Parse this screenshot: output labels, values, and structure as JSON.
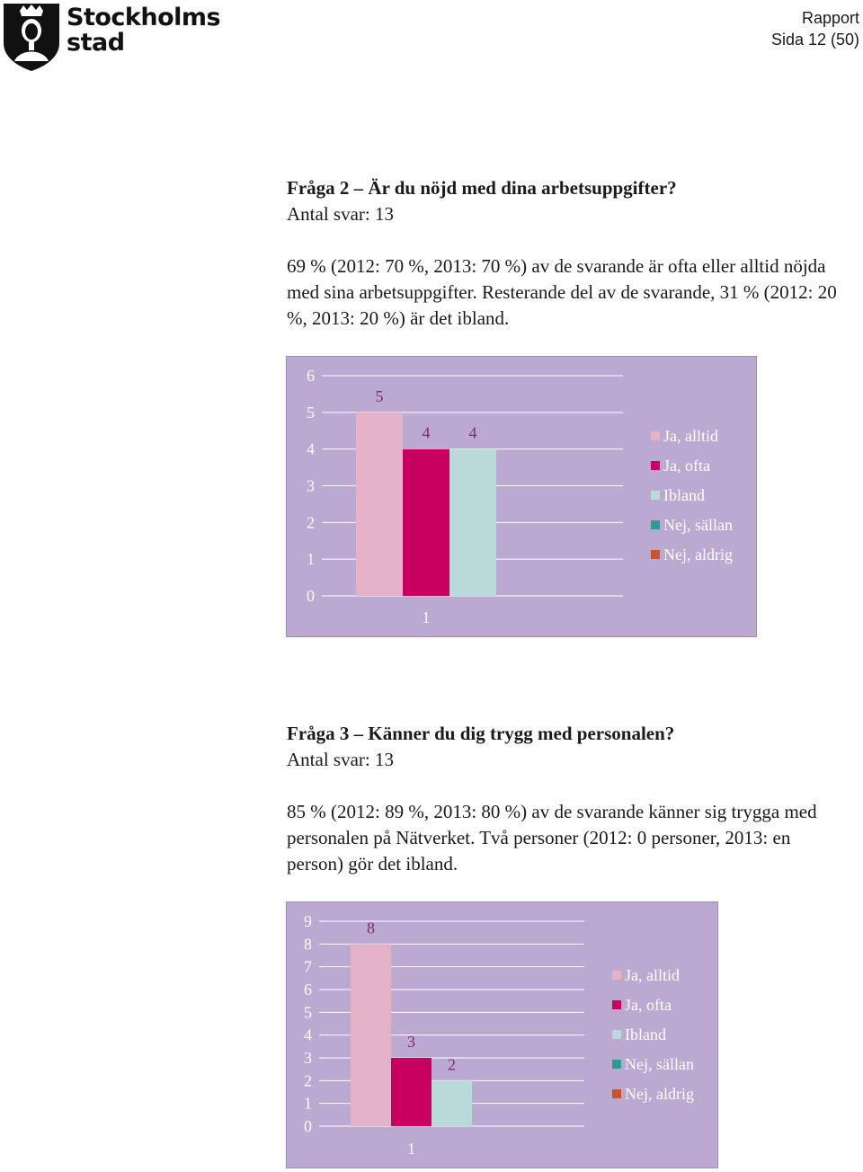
{
  "header": {
    "logo_lines": [
      "Stockholms",
      "stad"
    ],
    "report_label": "Rapport",
    "page_label": "Sida 12 (50)"
  },
  "sections": [
    {
      "title": "Fråga 2 – Är du nöjd med dina arbetsuppgifter?",
      "answers": "Antal svar: 13",
      "body": "69 % (2012: 70 %, 2013: 70 %) av de svarande är ofta eller alltid nöjda med sina arbetsuppgifter. Resterande del av de svarande, 31 % (2012: 20 %, 2013: 20 %) är det ibland."
    },
    {
      "title": "Fråga 3 – Känner du dig trygg med personalen?",
      "answers": "Antal svar: 13",
      "body": "85 % (2012: 89 %, 2013: 80 %) av de svarande känner sig trygga med personalen på Nätverket. Två personer (2012: 0 personer, 2013: en person) gör det ibland."
    }
  ],
  "chart_data": [
    {
      "type": "bar",
      "categories": [
        "1"
      ],
      "series": [
        {
          "name": "Ja, alltid",
          "values": [
            5
          ]
        },
        {
          "name": "Ja, ofta",
          "values": [
            4
          ]
        },
        {
          "name": "Ibland",
          "values": [
            4
          ]
        },
        {
          "name": "Nej, sällan",
          "values": [
            0
          ]
        },
        {
          "name": "Nej, aldrig",
          "values": [
            0
          ]
        }
      ],
      "ylim": [
        0,
        6
      ],
      "yticks": [
        "0",
        "1",
        "2",
        "3",
        "4",
        "5",
        "6"
      ],
      "data_labels": [
        "5",
        "4",
        "4"
      ],
      "grid": true,
      "legend": "right",
      "colors": {
        "background": "#bba9d2",
        "series": [
          "#e3b2c6",
          "#c8005f",
          "#b9dad8",
          "#2e9c93",
          "#c8532e"
        ],
        "grid": "#ffffff",
        "text": "#ffffff",
        "label_text": "#7a2f69"
      }
    },
    {
      "type": "bar",
      "categories": [
        "1"
      ],
      "series": [
        {
          "name": "Ja, alltid",
          "values": [
            8
          ]
        },
        {
          "name": "Ja, ofta",
          "values": [
            3
          ]
        },
        {
          "name": "Ibland",
          "values": [
            2
          ]
        },
        {
          "name": "Nej, sällan",
          "values": [
            0
          ]
        },
        {
          "name": "Nej, aldrig",
          "values": [
            0
          ]
        }
      ],
      "ylim": [
        0,
        9
      ],
      "yticks": [
        "0",
        "1",
        "2",
        "3",
        "4",
        "5",
        "6",
        "7",
        "8",
        "9"
      ],
      "data_labels": [
        "8",
        "3",
        "2"
      ],
      "grid": true,
      "legend": "right",
      "colors": {
        "background": "#bba9d2",
        "series": [
          "#e3b2c6",
          "#c8005f",
          "#b9dad8",
          "#2e9c93",
          "#c8532e"
        ],
        "grid": "#ffffff",
        "text": "#ffffff",
        "label_text": "#7a2f69"
      }
    }
  ]
}
